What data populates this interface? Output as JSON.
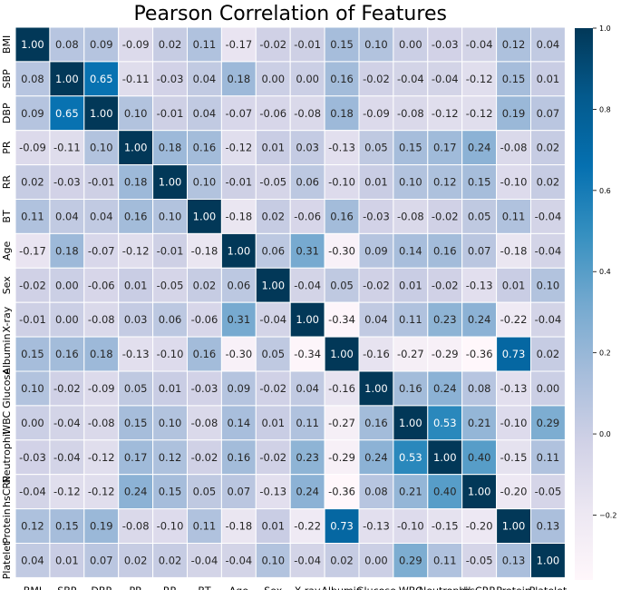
{
  "chart_data": {
    "type": "heatmap",
    "title": "Pearson Correlation of Features",
    "labels": [
      "BMI",
      "SBP",
      "DBP",
      "PR",
      "RR",
      "BT",
      "Age",
      "Sex",
      "X-ray",
      "Albumin",
      "Glucose",
      "WBC",
      "Neutrophil",
      "hsCRP",
      "Protein",
      "Platelet"
    ],
    "matrix": [
      [
        1.0,
        0.08,
        0.09,
        -0.09,
        0.02,
        0.11,
        -0.17,
        -0.02,
        -0.01,
        0.15,
        0.1,
        -0.0,
        -0.03,
        -0.04,
        0.12,
        0.04
      ],
      [
        0.08,
        1.0,
        0.65,
        -0.11,
        -0.03,
        0.04,
        0.18,
        0.0,
        -0.0,
        0.16,
        -0.02,
        -0.04,
        -0.04,
        -0.12,
        0.15,
        0.01
      ],
      [
        0.09,
        0.65,
        1.0,
        0.1,
        -0.01,
        0.04,
        -0.07,
        -0.06,
        -0.08,
        0.18,
        -0.09,
        -0.08,
        -0.12,
        -0.12,
        0.19,
        0.07
      ],
      [
        -0.09,
        -0.11,
        0.1,
        1.0,
        0.18,
        0.16,
        -0.12,
        0.01,
        0.03,
        -0.13,
        0.05,
        0.15,
        0.17,
        0.24,
        -0.08,
        0.02
      ],
      [
        0.02,
        -0.03,
        -0.01,
        0.18,
        1.0,
        0.1,
        -0.01,
        -0.05,
        0.06,
        -0.1,
        0.01,
        0.1,
        0.12,
        0.15,
        -0.1,
        0.02
      ],
      [
        0.11,
        0.04,
        0.04,
        0.16,
        0.1,
        1.0,
        -0.18,
        0.02,
        -0.06,
        0.16,
        -0.03,
        -0.08,
        -0.02,
        0.05,
        0.11,
        -0.04
      ],
      [
        -0.17,
        0.18,
        -0.07,
        -0.12,
        -0.01,
        -0.18,
        1.0,
        0.06,
        0.31,
        -0.3,
        0.09,
        0.14,
        0.16,
        0.07,
        -0.18,
        -0.04
      ],
      [
        -0.02,
        0.0,
        -0.06,
        0.01,
        -0.05,
        0.02,
        0.06,
        1.0,
        -0.04,
        0.05,
        -0.02,
        0.01,
        -0.02,
        -0.13,
        0.01,
        0.1
      ],
      [
        -0.01,
        -0.0,
        -0.08,
        0.03,
        0.06,
        -0.06,
        0.31,
        -0.04,
        1.0,
        -0.34,
        0.04,
        0.11,
        0.23,
        0.24,
        -0.22,
        -0.04
      ],
      [
        0.15,
        0.16,
        0.18,
        -0.13,
        -0.1,
        0.16,
        -0.3,
        0.05,
        -0.34,
        1.0,
        -0.16,
        -0.27,
        -0.29,
        -0.36,
        0.73,
        0.02
      ],
      [
        0.1,
        -0.02,
        -0.09,
        0.05,
        0.01,
        -0.03,
        0.09,
        -0.02,
        0.04,
        -0.16,
        1.0,
        0.16,
        0.24,
        0.08,
        -0.13,
        0.0
      ],
      [
        -0.0,
        -0.04,
        -0.08,
        0.15,
        0.1,
        -0.08,
        0.14,
        0.01,
        0.11,
        -0.27,
        0.16,
        1.0,
        0.53,
        0.21,
        -0.1,
        0.29
      ],
      [
        -0.03,
        -0.04,
        -0.12,
        0.17,
        0.12,
        -0.02,
        0.16,
        -0.02,
        0.23,
        -0.29,
        0.24,
        0.53,
        1.0,
        0.4,
        -0.15,
        0.11
      ],
      [
        -0.04,
        -0.12,
        -0.12,
        0.24,
        0.15,
        0.05,
        0.07,
        -0.13,
        0.24,
        -0.36,
        0.08,
        0.21,
        0.4,
        1.0,
        -0.2,
        -0.05
      ],
      [
        0.12,
        0.15,
        0.19,
        -0.08,
        -0.1,
        0.11,
        -0.18,
        0.01,
        -0.22,
        0.73,
        -0.13,
        -0.1,
        -0.15,
        -0.2,
        1.0,
        0.13
      ],
      [
        0.04,
        0.01,
        0.07,
        0.02,
        0.02,
        -0.04,
        -0.04,
        0.1,
        -0.04,
        0.02,
        0.0,
        0.29,
        0.11,
        -0.05,
        0.13,
        1.0
      ]
    ],
    "value_format": "2 decimals",
    "colormap": "PuBu",
    "colorscale_range": [
      -0.36,
      1.0
    ],
    "colorbar_ticks": [
      -0.2,
      0.0,
      0.2,
      0.4,
      0.6,
      0.8,
      1.0
    ],
    "colorbar_tick_labels": [
      "−0.2",
      "0.0",
      "0.2",
      "0.4",
      "0.6",
      "0.8",
      "1.0"
    ],
    "grid_lines": true,
    "grid_color": "#ffffff",
    "colormap_stops": [
      "#fff7fb",
      "#ece7f2",
      "#d0d1e6",
      "#a6bddb",
      "#74a9cf",
      "#3690c0",
      "#0570b0",
      "#045a8d",
      "#023858"
    ]
  }
}
